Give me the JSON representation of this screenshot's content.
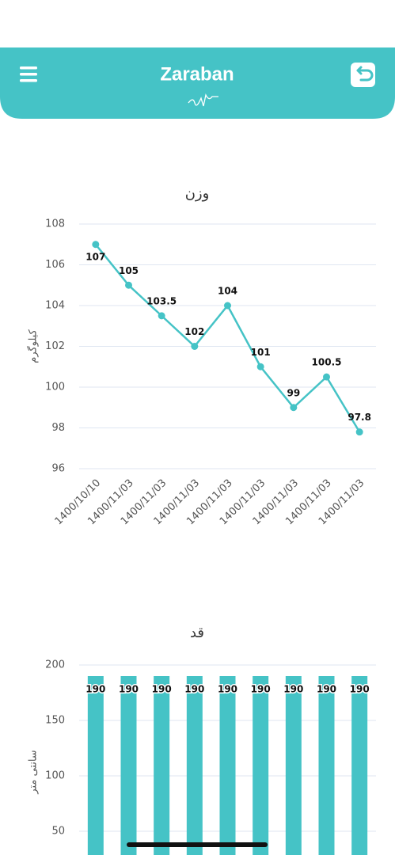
{
  "header": {
    "title": "Zaraban"
  },
  "chart_data": [
    {
      "type": "line",
      "title": "وزن",
      "y_label": "کیلوگرم",
      "categories": [
        "1400/10/10",
        "1400/11/03",
        "1400/11/03",
        "1400/11/03",
        "1400/11/03",
        "1400/11/03",
        "1400/11/03",
        "1400/11/03",
        "1400/11/03"
      ],
      "values": [
        107,
        105,
        103.5,
        102,
        104,
        101,
        99,
        100.5,
        97.8
      ],
      "color": "#45c3c6",
      "ylim": [
        96,
        108
      ],
      "yticks": [
        96,
        98,
        100,
        102,
        104,
        106,
        108
      ],
      "grid": true
    },
    {
      "type": "bar",
      "title": "قد",
      "y_label": "سانتی متر",
      "values": [
        190,
        190,
        190,
        190,
        190,
        190,
        190,
        190,
        190
      ],
      "color": "#45c3c6",
      "ylim": [
        0,
        200
      ],
      "yticks": [
        50,
        100,
        150,
        200
      ],
      "grid": true
    }
  ]
}
